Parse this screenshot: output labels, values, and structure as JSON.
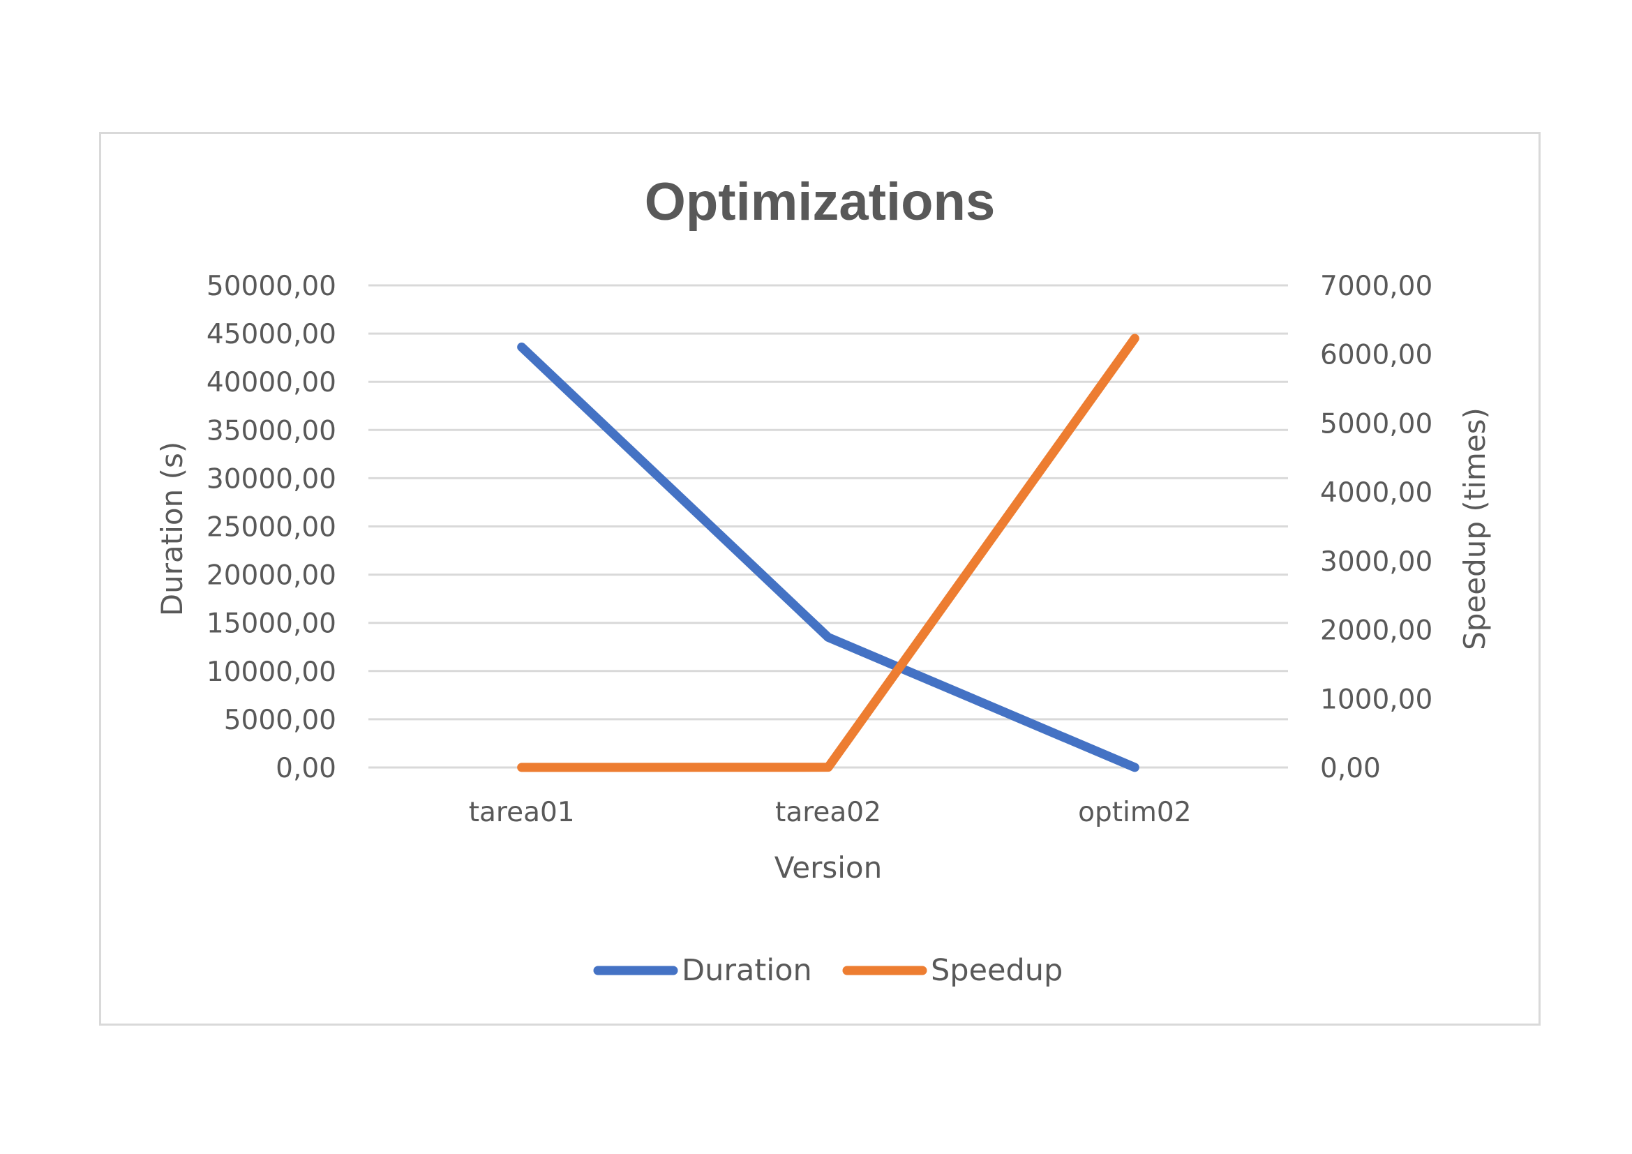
{
  "chart_data": {
    "type": "line",
    "title": "Optimizations",
    "xlabel": "Version",
    "ylabel": "Duration (s)",
    "y2label": "Speedup (times)",
    "categories": [
      "tarea01",
      "tarea02",
      "optim02"
    ],
    "ylim": [
      0,
      50000
    ],
    "y2lim": [
      0,
      7000
    ],
    "yticks": [
      "0,00",
      "5000,00",
      "10000,00",
      "15000,00",
      "20000,00",
      "25000,00",
      "30000,00",
      "35000,00",
      "40000,00",
      "45000,00",
      "50000,00"
    ],
    "y2ticks": [
      "0,00",
      "1000,00",
      "2000,00",
      "3000,00",
      "4000,00",
      "5000,00",
      "6000,00",
      "7000,00"
    ],
    "grid": true,
    "legend_position": "bottom",
    "series": [
      {
        "name": "Duration",
        "axis": "left",
        "color": "#4472C4",
        "values": [
          43600,
          13500,
          7
        ]
      },
      {
        "name": "Speedup",
        "axis": "right",
        "color": "#ED7D31",
        "values": [
          1,
          3.2,
          6230
        ]
      }
    ]
  }
}
